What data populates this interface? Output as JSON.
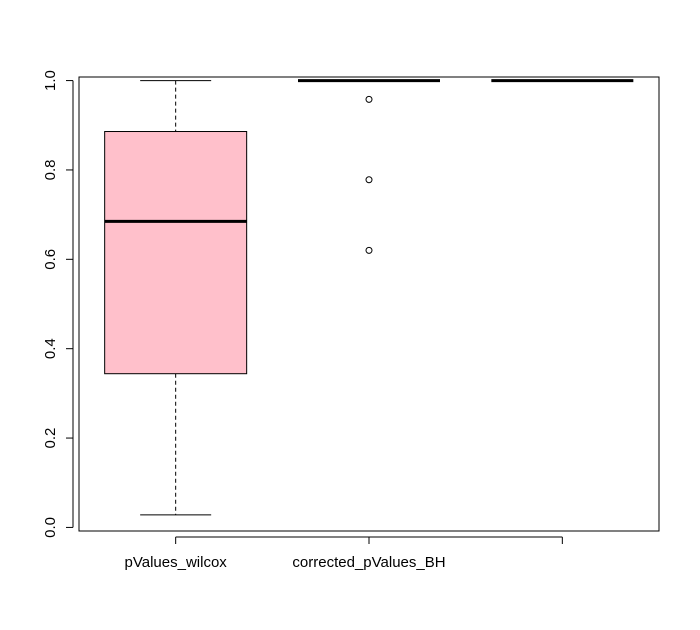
{
  "chart_data": {
    "type": "box",
    "title": "",
    "xlabel": "",
    "ylabel": "",
    "ylim": [
      -0.008,
      1.008
    ],
    "yticks": [
      "0.0",
      "0.2",
      "0.4",
      "0.6",
      "0.8",
      "1.0"
    ],
    "ytick_values": [
      0.0,
      0.2,
      0.4,
      0.6,
      0.8,
      1.0
    ],
    "categories": [
      "pValues_wilcox",
      "corrected_pValues_BH",
      ""
    ],
    "boxes": [
      {
        "whisker_low": 0.028,
        "q1": 0.344,
        "median": 0.685,
        "q3": 0.886,
        "whisker_high": 1.0,
        "fill": "#FFC0CB",
        "outliers": []
      },
      {
        "whisker_low": 1.0,
        "q1": 1.0,
        "median": 1.0,
        "q3": 1.0,
        "whisker_high": 1.0,
        "fill": "#FFC0CB",
        "outliers": [
          0.958,
          0.778,
          0.62
        ]
      },
      {
        "whisker_low": 1.0,
        "q1": 1.0,
        "median": 1.0,
        "q3": 1.0,
        "whisker_high": 1.0,
        "fill": "#FFC0CB",
        "outliers": []
      }
    ],
    "grid": false,
    "legend": "none"
  }
}
